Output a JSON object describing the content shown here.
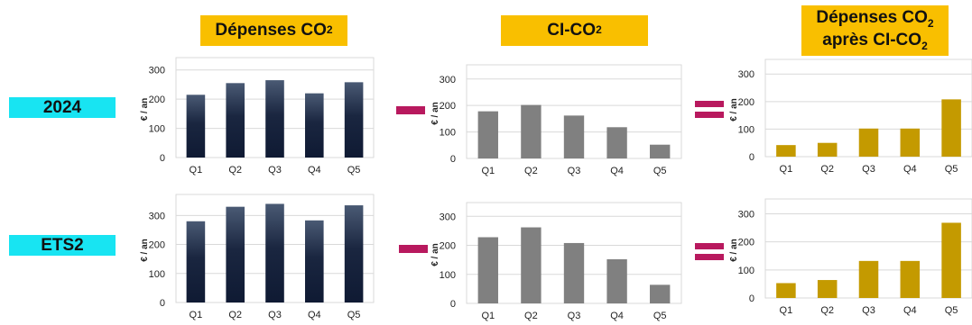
{
  "headers": {
    "col1": {
      "text": "Dépenses CO",
      "sub": "2"
    },
    "col2": {
      "text": "CI-CO",
      "sub": "2"
    },
    "col3": {
      "line1_text": "Dépenses CO",
      "line1_sub": "2",
      "line2_text": "après CI-CO",
      "line2_sub": "2"
    }
  },
  "rows": [
    {
      "label": "2024"
    },
    {
      "label": "ETS2"
    }
  ],
  "colors": {
    "header_bg": "#f9bf00",
    "row_label_bg": "#18e4f2",
    "operator": "#b8195e",
    "series_depenses": "#0f1a33",
    "series_ci": "#808080",
    "series_apres": "#c49a00"
  },
  "chart_data": [
    {
      "type": "bar",
      "row": "2024",
      "column": "Dépenses CO2",
      "ylabel": "€ / an",
      "ylim": [
        0,
        300
      ],
      "yticks": [
        0,
        100,
        200,
        300
      ],
      "grid": true,
      "categories": [
        "Q1",
        "Q2",
        "Q3",
        "Q4",
        "Q5"
      ],
      "values": [
        215,
        255,
        265,
        220,
        258
      ]
    },
    {
      "type": "bar",
      "row": "2024",
      "column": "CI-CO2",
      "ylabel": "€ / an",
      "ylim": [
        0,
        300
      ],
      "yticks": [
        0,
        100,
        200,
        300
      ],
      "grid": true,
      "categories": [
        "Q1",
        "Q2",
        "Q3",
        "Q4",
        "Q5"
      ],
      "values": [
        178,
        202,
        162,
        118,
        52
      ]
    },
    {
      "type": "bar",
      "row": "2024",
      "column": "Dépenses CO2 après CI-CO2",
      "ylabel": "€ / an",
      "ylim": [
        0,
        300
      ],
      "yticks": [
        0,
        100,
        200,
        300
      ],
      "grid": true,
      "categories": [
        "Q1",
        "Q2",
        "Q3",
        "Q4",
        "Q5"
      ],
      "values": [
        42,
        50,
        102,
        102,
        208
      ]
    },
    {
      "type": "bar",
      "row": "ETS2",
      "column": "Dépenses CO2",
      "ylabel": "€ / an",
      "ylim": [
        0,
        300
      ],
      "yticks": [
        0,
        100,
        200,
        300
      ],
      "grid": true,
      "categories": [
        "Q1",
        "Q2",
        "Q3",
        "Q4",
        "Q5"
      ],
      "values": [
        280,
        330,
        340,
        283,
        335
      ]
    },
    {
      "type": "bar",
      "row": "ETS2",
      "column": "CI-CO2",
      "ylabel": "€ / an",
      "ylim": [
        0,
        300
      ],
      "yticks": [
        0,
        100,
        200,
        300
      ],
      "grid": true,
      "categories": [
        "Q1",
        "Q2",
        "Q3",
        "Q4",
        "Q5"
      ],
      "values": [
        228,
        262,
        208,
        152,
        64
      ]
    },
    {
      "type": "bar",
      "row": "ETS2",
      "column": "Dépenses CO2 après CI-CO2",
      "ylabel": "€ / an",
      "ylim": [
        0,
        300
      ],
      "yticks": [
        0,
        100,
        200,
        300
      ],
      "grid": true,
      "categories": [
        "Q1",
        "Q2",
        "Q3",
        "Q4",
        "Q5"
      ],
      "values": [
        53,
        64,
        132,
        132,
        268
      ]
    }
  ]
}
